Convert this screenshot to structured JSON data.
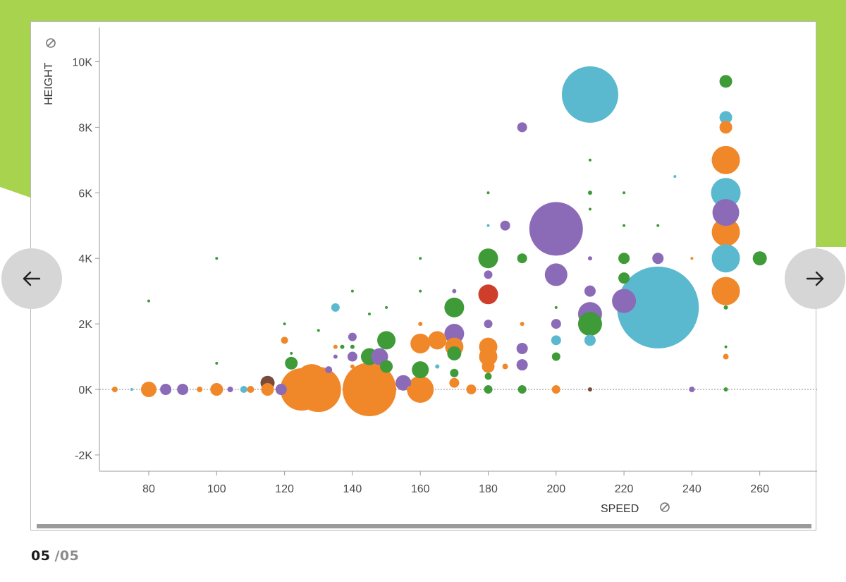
{
  "colors": {
    "background_green": "#a8d34f",
    "green": "#3f9a38",
    "orange": "#f0882a",
    "purple": "#8b6bb7",
    "cyan": "#5bb9cf",
    "red": "#cf3e2a",
    "brown": "#7a4a3a"
  },
  "navigation": {
    "prev_icon": "arrow-left-icon",
    "next_icon": "arrow-right-icon"
  },
  "pager": {
    "current": "05",
    "separator": "/",
    "total": "05"
  },
  "chart_data": {
    "type": "scatter",
    "title": "",
    "xlabel": "SPEED",
    "ylabel": "HEIGHT",
    "xlim": [
      67,
      275
    ],
    "ylim": [
      -2500,
      11000
    ],
    "x_ticks": [
      80,
      100,
      120,
      140,
      160,
      180,
      200,
      220,
      240,
      260
    ],
    "y_ticks": [
      {
        "value": 10000,
        "label": "10K"
      },
      {
        "value": 8000,
        "label": "8K"
      },
      {
        "value": 6000,
        "label": "6K"
      },
      {
        "value": 4000,
        "label": "4K"
      },
      {
        "value": 2000,
        "label": "2K"
      },
      {
        "value": 0,
        "label": "0K"
      },
      {
        "value": -2000,
        "label": "-2K"
      }
    ],
    "grid": false,
    "zero_line": true,
    "bubble_size": "relative radius",
    "points": [
      {
        "x": 70,
        "y": 0,
        "r": 4,
        "c": "orange"
      },
      {
        "x": 75,
        "y": 0,
        "r": 2,
        "c": "cyan"
      },
      {
        "x": 80,
        "y": 0,
        "r": 11,
        "c": "orange"
      },
      {
        "x": 80,
        "y": 2700,
        "r": 2,
        "c": "green"
      },
      {
        "x": 85,
        "y": 0,
        "r": 8,
        "c": "purple"
      },
      {
        "x": 90,
        "y": 0,
        "r": 8,
        "c": "purple"
      },
      {
        "x": 95,
        "y": 0,
        "r": 4,
        "c": "orange"
      },
      {
        "x": 100,
        "y": 0,
        "r": 9,
        "c": "orange"
      },
      {
        "x": 100,
        "y": 800,
        "r": 2,
        "c": "green"
      },
      {
        "x": 100,
        "y": 4000,
        "r": 2,
        "c": "green"
      },
      {
        "x": 104,
        "y": 0,
        "r": 4,
        "c": "purple"
      },
      {
        "x": 108,
        "y": 0,
        "r": 5,
        "c": "cyan"
      },
      {
        "x": 110,
        "y": 0,
        "r": 5,
        "c": "orange"
      },
      {
        "x": 115,
        "y": 200,
        "r": 10,
        "c": "brown"
      },
      {
        "x": 115,
        "y": 0,
        "r": 9,
        "c": "orange"
      },
      {
        "x": 119,
        "y": 0,
        "r": 8,
        "c": "purple"
      },
      {
        "x": 120,
        "y": 1500,
        "r": 5,
        "c": "orange"
      },
      {
        "x": 120,
        "y": 2000,
        "r": 2,
        "c": "green"
      },
      {
        "x": 122,
        "y": 800,
        "r": 9,
        "c": "green"
      },
      {
        "x": 122,
        "y": 1100,
        "r": 2,
        "c": "green"
      },
      {
        "x": 125,
        "y": 0,
        "r": 30,
        "c": "orange"
      },
      {
        "x": 126,
        "y": 100,
        "r": 26,
        "c": "orange"
      },
      {
        "x": 128,
        "y": 300,
        "r": 22,
        "c": "orange"
      },
      {
        "x": 130,
        "y": 0,
        "r": 32,
        "c": "orange"
      },
      {
        "x": 130,
        "y": 1800,
        "r": 2,
        "c": "green"
      },
      {
        "x": 133,
        "y": 600,
        "r": 5,
        "c": "purple"
      },
      {
        "x": 135,
        "y": 2500,
        "r": 6,
        "c": "cyan"
      },
      {
        "x": 135,
        "y": 1300,
        "r": 3,
        "c": "orange"
      },
      {
        "x": 135,
        "y": 1000,
        "r": 3,
        "c": "purple"
      },
      {
        "x": 137,
        "y": 1300,
        "r": 3,
        "c": "green"
      },
      {
        "x": 140,
        "y": 1600,
        "r": 6,
        "c": "purple"
      },
      {
        "x": 140,
        "y": 1000,
        "r": 7,
        "c": "purple"
      },
      {
        "x": 140,
        "y": 3000,
        "r": 2,
        "c": "green"
      },
      {
        "x": 140,
        "y": 1300,
        "r": 3,
        "c": "green"
      },
      {
        "x": 140,
        "y": 700,
        "r": 3,
        "c": "orange"
      },
      {
        "x": 145,
        "y": 1000,
        "r": 12,
        "c": "green"
      },
      {
        "x": 145,
        "y": 0,
        "r": 38,
        "c": "orange"
      },
      {
        "x": 145,
        "y": 2300,
        "r": 2,
        "c": "green"
      },
      {
        "x": 148,
        "y": 1000,
        "r": 12,
        "c": "purple"
      },
      {
        "x": 150,
        "y": 1500,
        "r": 13,
        "c": "green"
      },
      {
        "x": 150,
        "y": 700,
        "r": 9,
        "c": "green"
      },
      {
        "x": 150,
        "y": 2500,
        "r": 2,
        "c": "green"
      },
      {
        "x": 155,
        "y": 200,
        "r": 11,
        "c": "purple"
      },
      {
        "x": 157,
        "y": 0,
        "r": 5,
        "c": "orange"
      },
      {
        "x": 160,
        "y": 1400,
        "r": 14,
        "c": "orange"
      },
      {
        "x": 160,
        "y": 600,
        "r": 12,
        "c": "green"
      },
      {
        "x": 160,
        "y": 0,
        "r": 19,
        "c": "orange"
      },
      {
        "x": 160,
        "y": 4000,
        "r": 2,
        "c": "green"
      },
      {
        "x": 160,
        "y": 2000,
        "r": 3,
        "c": "orange"
      },
      {
        "x": 160,
        "y": 3000,
        "r": 2,
        "c": "green"
      },
      {
        "x": 165,
        "y": 1500,
        "r": 13,
        "c": "orange"
      },
      {
        "x": 165,
        "y": 700,
        "r": 3,
        "c": "cyan"
      },
      {
        "x": 170,
        "y": 2500,
        "r": 14,
        "c": "green"
      },
      {
        "x": 170,
        "y": 1700,
        "r": 14,
        "c": "purple"
      },
      {
        "x": 170,
        "y": 1300,
        "r": 13,
        "c": "orange"
      },
      {
        "x": 170,
        "y": 1100,
        "r": 10,
        "c": "green"
      },
      {
        "x": 170,
        "y": 500,
        "r": 6,
        "c": "green"
      },
      {
        "x": 170,
        "y": 200,
        "r": 7,
        "c": "orange"
      },
      {
        "x": 170,
        "y": 3000,
        "r": 3,
        "c": "purple"
      },
      {
        "x": 175,
        "y": 0,
        "r": 7,
        "c": "orange"
      },
      {
        "x": 180,
        "y": 4000,
        "r": 14,
        "c": "green"
      },
      {
        "x": 180,
        "y": 3500,
        "r": 6,
        "c": "purple"
      },
      {
        "x": 180,
        "y": 2900,
        "r": 14,
        "c": "red"
      },
      {
        "x": 180,
        "y": 2000,
        "r": 6,
        "c": "purple"
      },
      {
        "x": 180,
        "y": 1300,
        "r": 13,
        "c": "orange"
      },
      {
        "x": 180,
        "y": 1000,
        "r": 13,
        "c": "orange"
      },
      {
        "x": 180,
        "y": 700,
        "r": 9,
        "c": "orange"
      },
      {
        "x": 180,
        "y": 400,
        "r": 5,
        "c": "green"
      },
      {
        "x": 180,
        "y": 0,
        "r": 6,
        "c": "green"
      },
      {
        "x": 180,
        "y": 6000,
        "r": 2,
        "c": "green"
      },
      {
        "x": 180,
        "y": 5000,
        "r": 2,
        "c": "cyan"
      },
      {
        "x": 185,
        "y": 5000,
        "r": 7,
        "c": "purple"
      },
      {
        "x": 185,
        "y": 700,
        "r": 4,
        "c": "orange"
      },
      {
        "x": 190,
        "y": 8000,
        "r": 7,
        "c": "purple"
      },
      {
        "x": 190,
        "y": 4000,
        "r": 7,
        "c": "green"
      },
      {
        "x": 190,
        "y": 1250,
        "r": 8,
        "c": "purple"
      },
      {
        "x": 190,
        "y": 750,
        "r": 8,
        "c": "purple"
      },
      {
        "x": 190,
        "y": 0,
        "r": 6,
        "c": "green"
      },
      {
        "x": 190,
        "y": 2000,
        "r": 3,
        "c": "orange"
      },
      {
        "x": 200,
        "y": 4900,
        "r": 38,
        "c": "purple"
      },
      {
        "x": 200,
        "y": 3500,
        "r": 16,
        "c": "purple"
      },
      {
        "x": 200,
        "y": 2000,
        "r": 7,
        "c": "purple"
      },
      {
        "x": 200,
        "y": 1500,
        "r": 7,
        "c": "cyan"
      },
      {
        "x": 200,
        "y": 1000,
        "r": 6,
        "c": "green"
      },
      {
        "x": 200,
        "y": 0,
        "r": 6,
        "c": "orange"
      },
      {
        "x": 200,
        "y": 2500,
        "r": 2,
        "c": "green"
      },
      {
        "x": 210,
        "y": 9000,
        "r": 40,
        "c": "cyan"
      },
      {
        "x": 210,
        "y": 3000,
        "r": 8,
        "c": "purple"
      },
      {
        "x": 210,
        "y": 2300,
        "r": 17,
        "c": "purple"
      },
      {
        "x": 210,
        "y": 2000,
        "r": 17,
        "c": "green"
      },
      {
        "x": 210,
        "y": 1500,
        "r": 8,
        "c": "cyan"
      },
      {
        "x": 210,
        "y": 0,
        "r": 3,
        "c": "brown"
      },
      {
        "x": 210,
        "y": 7000,
        "r": 2,
        "c": "green"
      },
      {
        "x": 210,
        "y": 6000,
        "r": 3,
        "c": "green"
      },
      {
        "x": 210,
        "y": 5500,
        "r": 2,
        "c": "green"
      },
      {
        "x": 210,
        "y": 4000,
        "r": 3,
        "c": "purple"
      },
      {
        "x": 220,
        "y": 2700,
        "r": 17,
        "c": "purple"
      },
      {
        "x": 220,
        "y": 4000,
        "r": 8,
        "c": "green"
      },
      {
        "x": 220,
        "y": 3400,
        "r": 8,
        "c": "green"
      },
      {
        "x": 220,
        "y": 6000,
        "r": 2,
        "c": "green"
      },
      {
        "x": 220,
        "y": 5000,
        "r": 2,
        "c": "green"
      },
      {
        "x": 230,
        "y": 2500,
        "r": 58,
        "c": "cyan"
      },
      {
        "x": 230,
        "y": 4000,
        "r": 8,
        "c": "purple"
      },
      {
        "x": 230,
        "y": 5000,
        "r": 2,
        "c": "green"
      },
      {
        "x": 235,
        "y": 6500,
        "r": 2,
        "c": "cyan"
      },
      {
        "x": 240,
        "y": 0,
        "r": 4,
        "c": "purple"
      },
      {
        "x": 240,
        "y": 4000,
        "r": 2,
        "c": "orange"
      },
      {
        "x": 250,
        "y": 9400,
        "r": 9,
        "c": "green"
      },
      {
        "x": 250,
        "y": 8300,
        "r": 9,
        "c": "cyan"
      },
      {
        "x": 250,
        "y": 8000,
        "r": 9,
        "c": "orange"
      },
      {
        "x": 250,
        "y": 7000,
        "r": 20,
        "c": "orange"
      },
      {
        "x": 250,
        "y": 6000,
        "r": 21,
        "c": "cyan"
      },
      {
        "x": 250,
        "y": 5400,
        "r": 19,
        "c": "purple"
      },
      {
        "x": 250,
        "y": 4800,
        "r": 20,
        "c": "orange"
      },
      {
        "x": 250,
        "y": 4000,
        "r": 20,
        "c": "cyan"
      },
      {
        "x": 250,
        "y": 3000,
        "r": 20,
        "c": "orange"
      },
      {
        "x": 250,
        "y": 1000,
        "r": 4,
        "c": "orange"
      },
      {
        "x": 250,
        "y": 1300,
        "r": 2,
        "c": "green"
      },
      {
        "x": 250,
        "y": 2500,
        "r": 3,
        "c": "green"
      },
      {
        "x": 250,
        "y": 0,
        "r": 3,
        "c": "green"
      },
      {
        "x": 260,
        "y": 4000,
        "r": 10,
        "c": "green"
      }
    ]
  }
}
